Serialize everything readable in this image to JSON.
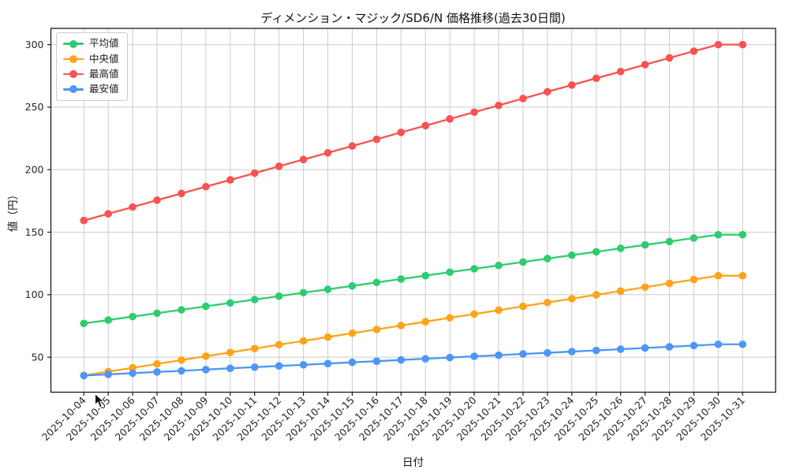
{
  "chart_data": {
    "type": "line",
    "title": "ディメンション・マジック/SD6/N 価格推移(過去30日間)",
    "xlabel": "日付",
    "ylabel": "値（円）",
    "x": [
      "2025-10-04",
      "2025-10-05",
      "2025-10-06",
      "2025-10-07",
      "2025-10-08",
      "2025-10-09",
      "2025-10-10",
      "2025-10-11",
      "2025-10-12",
      "2025-10-13",
      "2025-10-14",
      "2025-10-15",
      "2025-10-16",
      "2025-10-17",
      "2025-10-18",
      "2025-10-19",
      "2025-10-20",
      "2025-10-21",
      "2025-10-22",
      "2025-10-23",
      "2025-10-24",
      "2025-10-25",
      "2025-10-26",
      "2025-10-27",
      "2025-10-28",
      "2025-10-29",
      "2025-10-30",
      "2025-10-31"
    ],
    "series": [
      {
        "name": "平均値",
        "color": "#2ecc71",
        "values": [
          77.0,
          79.7,
          82.5,
          85.2,
          87.9,
          90.7,
          93.4,
          96.1,
          98.8,
          101.6,
          104.3,
          107.0,
          109.8,
          112.5,
          115.2,
          118.0,
          120.7,
          123.4,
          126.1,
          128.9,
          131.6,
          134.3,
          137.1,
          139.8,
          142.5,
          145.3,
          148.0,
          148.0
        ]
      },
      {
        "name": "中央値",
        "color": "#ffa31a",
        "values": [
          35.4,
          38.5,
          41.5,
          44.6,
          47.7,
          50.8,
          53.8,
          56.9,
          60.0,
          63.0,
          66.1,
          69.2,
          72.2,
          75.3,
          78.4,
          81.5,
          84.5,
          87.6,
          90.7,
          93.7,
          96.8,
          99.9,
          102.9,
          106.0,
          109.1,
          112.1,
          115.2,
          115.2
        ]
      },
      {
        "name": "最高値",
        "color": "#fa5151",
        "values": [
          159.3,
          164.7,
          170.1,
          175.6,
          181.0,
          186.4,
          191.8,
          197.2,
          202.7,
          208.1,
          213.5,
          218.9,
          224.3,
          229.8,
          235.2,
          240.6,
          246.0,
          251.4,
          256.9,
          262.3,
          267.7,
          273.1,
          278.5,
          284.0,
          289.4,
          294.8,
          300.0,
          300.0
        ]
      },
      {
        "name": "最安値",
        "color": "#4d96f5",
        "values": [
          35.3,
          36.3,
          37.2,
          38.2,
          39.1,
          40.1,
          41.1,
          42.0,
          43.0,
          43.9,
          44.9,
          45.9,
          46.8,
          47.8,
          48.7,
          49.7,
          50.7,
          51.6,
          52.6,
          53.5,
          54.5,
          55.4,
          56.4,
          57.4,
          58.3,
          59.3,
          60.3,
          60.3
        ]
      }
    ],
    "yticks": [
      50,
      100,
      150,
      200,
      250,
      300
    ],
    "ylim": [
      22,
      313
    ],
    "x_margin_days": 1.35,
    "grid": true,
    "grid_color": "#cccccc",
    "axis_color": "#1a1a1a",
    "tick_label_color": "#262626",
    "legend_position": "upper-left",
    "background": "#ffffff"
  }
}
